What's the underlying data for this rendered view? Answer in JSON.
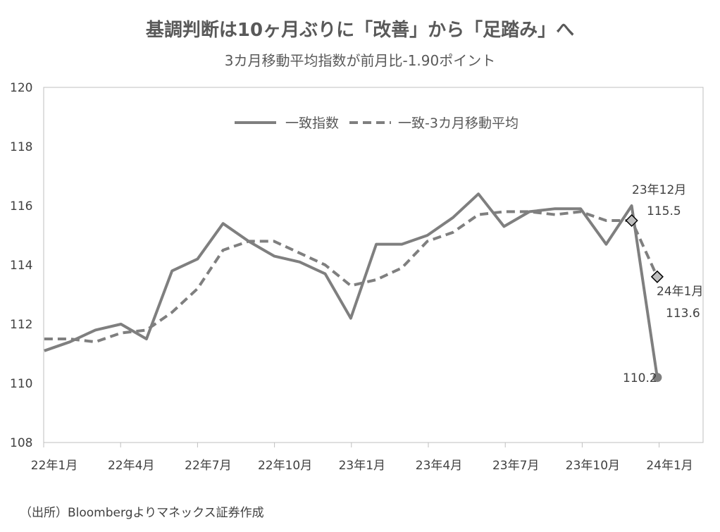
{
  "chart_data": {
    "type": "line",
    "title": "基調判断は10ヶ月ぶりに「改善」から「足踏み」へ",
    "subtitle": "3カ月移動平均指数が前月比-1.90ポイント",
    "source": "（出所）Bloombergよりマネックス証券作成",
    "ylim": [
      108,
      120
    ],
    "yticks": [
      108,
      110,
      112,
      114,
      116,
      118,
      120
    ],
    "x_tick_labels": [
      "22年1月",
      "22年4月",
      "22年7月",
      "22年10月",
      "23年1月",
      "23年4月",
      "23年7月",
      "23年10月",
      "24年1月"
    ],
    "x_tick_indices": [
      0,
      3,
      6,
      9,
      12,
      15,
      18,
      21,
      24
    ],
    "x": [
      "22年1月",
      "22年2月",
      "22年3月",
      "22年4月",
      "22年5月",
      "22年6月",
      "22年7月",
      "22年8月",
      "22年9月",
      "22年10月",
      "22年11月",
      "22年12月",
      "23年1月",
      "23年2月",
      "23年3月",
      "23年4月",
      "23年5月",
      "23年6月",
      "23年7月",
      "23年8月",
      "23年9月",
      "23年10月",
      "23年11月",
      "23年12月",
      "24年1月"
    ],
    "series": [
      {
        "name": "一致指数",
        "style": "solid",
        "color": "#7f7f7f",
        "values": [
          111.1,
          111.4,
          111.8,
          112.0,
          111.5,
          113.8,
          114.2,
          115.4,
          114.8,
          114.3,
          114.1,
          113.7,
          112.2,
          114.7,
          114.7,
          115.0,
          115.6,
          116.4,
          115.3,
          115.8,
          115.9,
          115.9,
          114.7,
          116.0,
          110.2
        ]
      },
      {
        "name": "一致-3カ月移動平均",
        "style": "dashed",
        "color": "#7f7f7f",
        "values": [
          111.5,
          111.5,
          111.4,
          111.7,
          111.8,
          112.4,
          113.2,
          114.5,
          114.8,
          114.8,
          114.4,
          114.0,
          113.3,
          113.5,
          113.9,
          114.8,
          115.1,
          115.7,
          115.8,
          115.8,
          115.7,
          115.8,
          115.5,
          115.5,
          113.6
        ]
      }
    ],
    "annotations": {
      "dec_label": "23年12月",
      "dec_value": "115.5",
      "jan_label": "24年1月",
      "jan_value": "113.6",
      "last_value": "110.2"
    },
    "grid": false,
    "legend_position": "top-center"
  }
}
